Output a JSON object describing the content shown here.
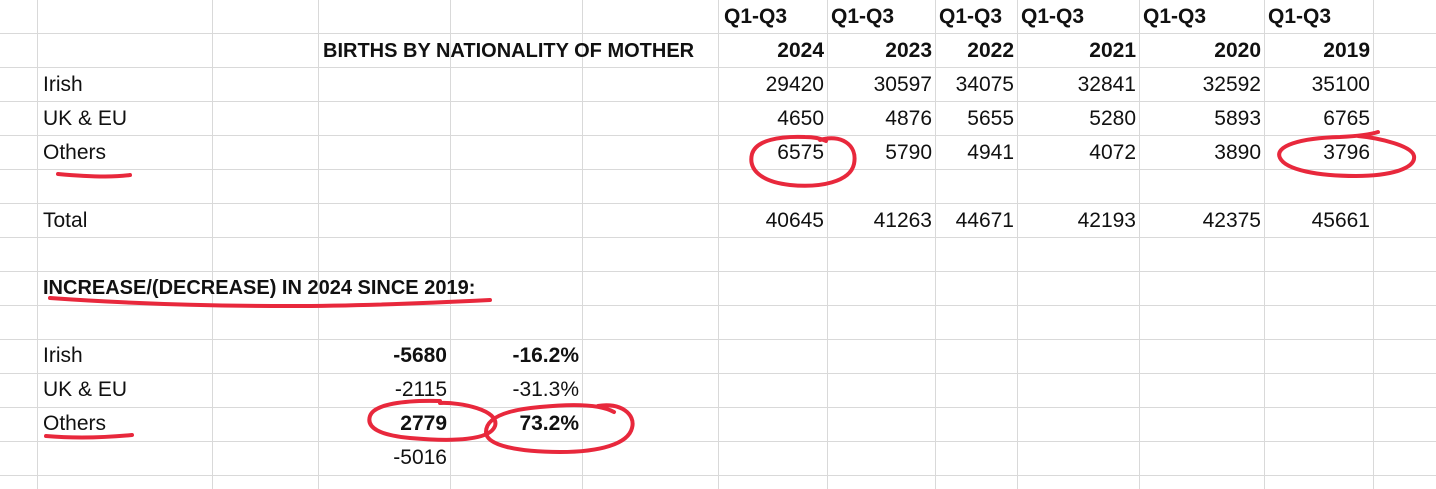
{
  "header_top": {
    "c2024": "Q1-Q3",
    "c2023": "Q1-Q3",
    "c2022": "Q1-Q3",
    "c2021": "Q1-Q3",
    "c2020": "Q1-Q3",
    "c2019": "Q1-Q3"
  },
  "header_years": {
    "title": "BIRTHS BY NATIONALITY OF MOTHER",
    "c2024": "2024",
    "c2023": "2023",
    "c2022": "2022",
    "c2021": "2021",
    "c2020": "2020",
    "c2019": "2019"
  },
  "irish": {
    "label": "Irish",
    "c2024": "29420",
    "c2023": "30597",
    "c2022": "34075",
    "c2021": "32841",
    "c2020": "32592",
    "c2019": "35100"
  },
  "ukeu": {
    "label": "UK & EU",
    "c2024": "4650",
    "c2023": "4876",
    "c2022": "5655",
    "c2021": "5280",
    "c2020": "5893",
    "c2019": "6765"
  },
  "others": {
    "label": "Others",
    "c2024": "6575",
    "c2023": "5790",
    "c2022": "4941",
    "c2021": "4072",
    "c2020": "3890",
    "c2019": "3796"
  },
  "total": {
    "label": "Total",
    "c2024": "40645",
    "c2023": "41263",
    "c2022": "44671",
    "c2021": "42193",
    "c2020": "42375",
    "c2019": "45661"
  },
  "change": {
    "heading": "INCREASE/(DECREASE) IN 2024 SINCE 2019:",
    "irish": {
      "label": "Irish",
      "abs": "-5680",
      "pct": "-16.2%"
    },
    "ukeu": {
      "label": "UK & EU",
      "abs": "-2115",
      "pct": "-31.3%"
    },
    "others": {
      "label": "Others",
      "abs": "2779",
      "pct": "73.2%"
    },
    "total_abs": "-5016"
  },
  "annotation_color": "#e8283c",
  "grid_color": "#d9d9d9"
}
